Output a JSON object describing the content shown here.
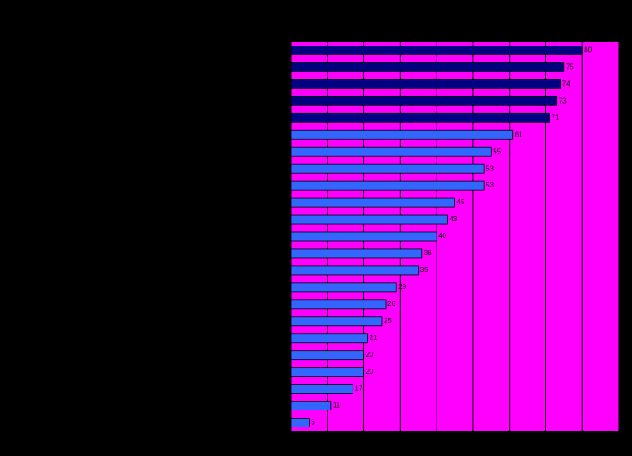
{
  "chart_data": {
    "type": "barh",
    "values": [
      80,
      75,
      74,
      73,
      71,
      61,
      55,
      53,
      53,
      45,
      43,
      40,
      36,
      35,
      29,
      26,
      25,
      21,
      20,
      20,
      17,
      11,
      5
    ],
    "colors": [
      "#000080",
      "#000080",
      "#000080",
      "#000080",
      "#000080",
      "#3366ff",
      "#3366ff",
      "#3366ff",
      "#3366ff",
      "#3366ff",
      "#3366ff",
      "#3366ff",
      "#3366ff",
      "#3366ff",
      "#3366ff",
      "#3366ff",
      "#3366ff",
      "#3366ff",
      "#3366ff",
      "#3366ff",
      "#3366ff",
      "#3366ff",
      "#3366ff"
    ],
    "background": "#ff00ff",
    "xlim": [
      0,
      90
    ],
    "xticks": [
      0,
      10,
      20,
      30,
      40,
      50,
      60,
      70,
      80,
      90
    ],
    "grid": true
  }
}
